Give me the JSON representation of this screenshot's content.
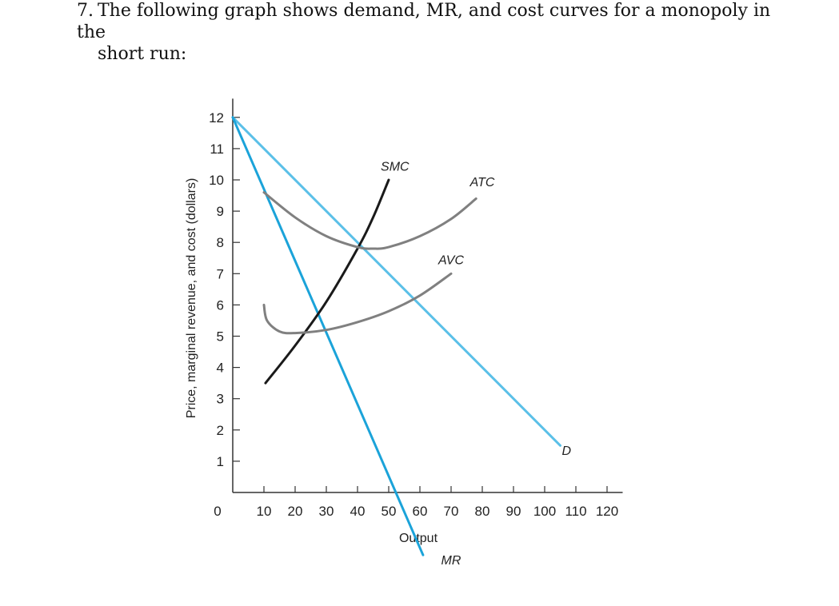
{
  "question": {
    "number": "7.",
    "line1": "The following graph shows demand, MR, and cost curves for a monopoly in the",
    "line2": "short run:"
  },
  "chart_data": {
    "type": "line",
    "xlabel": "Output",
    "ylabel": "Price, marginal revenue, and cost (dollars)",
    "xlim": [
      0,
      120
    ],
    "ylim": [
      0,
      12
    ],
    "x_ticks": [
      10,
      20,
      30,
      40,
      50,
      60,
      70,
      80,
      90,
      100,
      110,
      120
    ],
    "y_ticks": [
      1,
      2,
      3,
      4,
      5,
      6,
      7,
      8,
      9,
      10,
      11,
      12
    ],
    "origin_label": "0",
    "grid": false,
    "series": [
      {
        "name": "D",
        "color": "#5bc0e8",
        "points": [
          [
            0,
            12
          ],
          [
            105,
            1.5
          ]
        ]
      },
      {
        "name": "MR",
        "color": "#1ba3d9",
        "points": [
          [
            0,
            12
          ],
          [
            61,
            -2
          ]
        ]
      },
      {
        "name": "SMC",
        "color": "#1a1a1a",
        "points": [
          [
            10.5,
            3.5
          ],
          [
            20,
            4.7
          ],
          [
            30,
            6.1
          ],
          [
            40,
            7.8
          ],
          [
            45,
            8.8
          ],
          [
            50,
            10
          ]
        ]
      },
      {
        "name": "ATC",
        "color": "#808080",
        "points": [
          [
            10,
            9.6
          ],
          [
            20,
            8.8
          ],
          [
            30,
            8.2
          ],
          [
            40,
            7.85
          ],
          [
            45,
            7.8
          ],
          [
            50,
            7.85
          ],
          [
            60,
            8.2
          ],
          [
            70,
            8.75
          ],
          [
            78,
            9.4
          ]
        ]
      },
      {
        "name": "AVC",
        "color": "#808080",
        "points": [
          [
            10,
            6
          ],
          [
            11,
            5.5
          ],
          [
            15,
            5.15
          ],
          [
            20,
            5.1
          ],
          [
            30,
            5.2
          ],
          [
            40,
            5.45
          ],
          [
            50,
            5.8
          ],
          [
            60,
            6.3
          ],
          [
            70,
            7
          ]
        ]
      }
    ],
    "curve_labels": [
      {
        "text": "SMC",
        "x": 52,
        "y": 10.3
      },
      {
        "text": "ATC",
        "x": 80,
        "y": 9.8
      },
      {
        "text": "AVC",
        "x": 70,
        "y": 7.3
      },
      {
        "text": "D",
        "x": 107,
        "y": 1.2
      },
      {
        "text": "MR",
        "x": 70,
        "y": -2.3
      }
    ]
  }
}
